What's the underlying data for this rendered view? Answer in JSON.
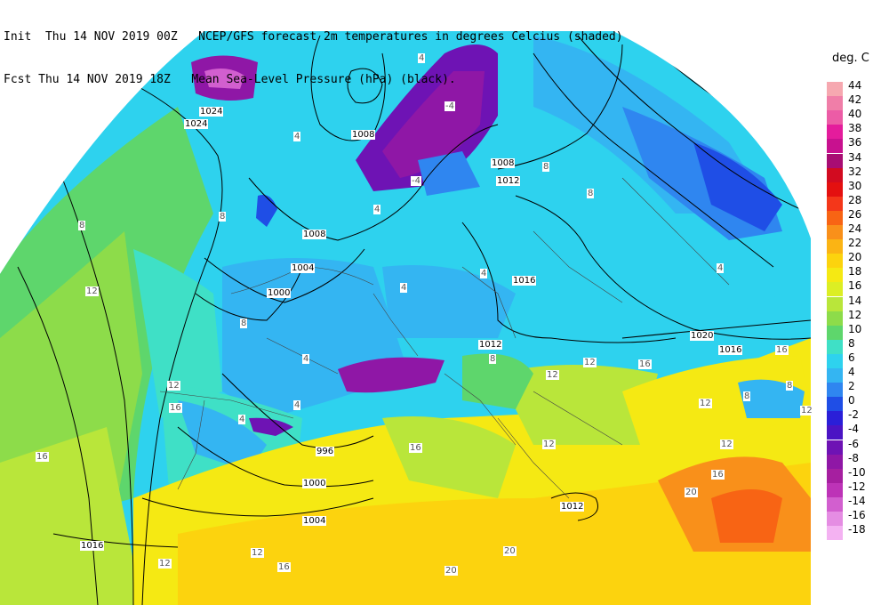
{
  "header": {
    "line1": "Init  Thu 14 NOV 2019 00Z   NCEP/GFS forecast 2m temperatures in degrees Celcius (shaded)",
    "line2": "Fcst Thu 14 NOV 2019 18Z   Mean Sea-Level Pressure (hPa) (black)."
  },
  "legend": {
    "title": "deg. C",
    "entries": [
      {
        "label": "44",
        "color": "#f6a8b0"
      },
      {
        "label": "42",
        "color": "#f07ea8"
      },
      {
        "label": "40",
        "color": "#ec5ca6"
      },
      {
        "label": "38",
        "color": "#e41c9c"
      },
      {
        "label": "36",
        "color": "#c8118f"
      },
      {
        "label": "34",
        "color": "#a80d73"
      },
      {
        "label": "32",
        "color": "#d20b20"
      },
      {
        "label": "30",
        "color": "#e41010"
      },
      {
        "label": "28",
        "color": "#f4371a"
      },
      {
        "label": "26",
        "color": "#f86414"
      },
      {
        "label": "24",
        "color": "#f9901a"
      },
      {
        "label": "22",
        "color": "#fbb414"
      },
      {
        "label": "20",
        "color": "#fcd30e"
      },
      {
        "label": "18",
        "color": "#f5e913"
      },
      {
        "label": "16",
        "color": "#dcee24"
      },
      {
        "label": "14",
        "color": "#b9e63a"
      },
      {
        "label": "12",
        "color": "#8ddc4a"
      },
      {
        "label": "10",
        "color": "#5ed66c"
      },
      {
        "label": "8",
        "color": "#3fe0c6"
      },
      {
        "label": "6",
        "color": "#2ed2ee"
      },
      {
        "label": "4",
        "color": "#34b5f2"
      },
      {
        "label": "2",
        "color": "#2f86f0"
      },
      {
        "label": "0",
        "color": "#1f4ee6"
      },
      {
        "label": "-2",
        "color": "#2a1fd8"
      },
      {
        "label": "-4",
        "color": "#4b14c4"
      },
      {
        "label": "-6",
        "color": "#6e13b4"
      },
      {
        "label": "-8",
        "color": "#8f17a6"
      },
      {
        "label": "-10",
        "color": "#a61fa0"
      },
      {
        "label": "-12",
        "color": "#bd33b7"
      },
      {
        "label": "-14",
        "color": "#d25fcf"
      },
      {
        "label": "-16",
        "color": "#e58de3"
      },
      {
        "label": "-18",
        "color": "#f4b2f2"
      }
    ]
  },
  "pressure_labels": [
    "1024",
    "1024",
    "1008",
    "1008",
    "1004",
    "1000",
    "1008",
    "1012",
    "1016",
    "1012",
    "1020",
    "1016",
    "996",
    "1000",
    "1004",
    "1016",
    "1012"
  ],
  "temp_labels": [
    "4",
    "4",
    "4",
    "8",
    "8",
    "8",
    "12",
    "4",
    "4",
    "8",
    "8",
    "8",
    "4",
    "4",
    "4",
    "4",
    "16",
    "12",
    "12",
    "8",
    "8",
    "12",
    "12",
    "16",
    "16",
    "12",
    "20",
    "20",
    "16",
    "12",
    "12",
    "16",
    "20",
    "16",
    "12",
    "16",
    "12",
    "-4",
    "-4"
  ]
}
